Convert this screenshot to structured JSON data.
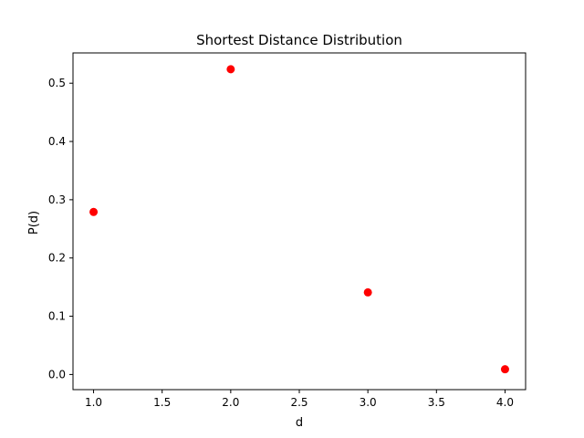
{
  "chart_data": {
    "type": "scatter",
    "title": "Shortest Distance Distribution",
    "xlabel": "d",
    "ylabel": "P(d)",
    "xlim": [
      0.85,
      4.15
    ],
    "ylim": [
      -0.026,
      0.552
    ],
    "xticks": [
      1.0,
      1.5,
      2.0,
      2.5,
      3.0,
      3.5,
      4.0
    ],
    "xtick_labels": [
      "1.0",
      "1.5",
      "2.0",
      "2.5",
      "3.0",
      "3.5",
      "4.0"
    ],
    "yticks": [
      0.0,
      0.1,
      0.2,
      0.3,
      0.4,
      0.5
    ],
    "ytick_labels": [
      "0.0",
      "0.1",
      "0.2",
      "0.3",
      "0.4",
      "0.5"
    ],
    "grid": false,
    "series": [
      {
        "color": "#ff0000",
        "marker": "circle",
        "points": [
          {
            "x": 1,
            "y": 0.279
          },
          {
            "x": 2,
            "y": 0.524
          },
          {
            "x": 3,
            "y": 0.141
          },
          {
            "x": 4,
            "y": 0.009
          }
        ]
      }
    ]
  }
}
